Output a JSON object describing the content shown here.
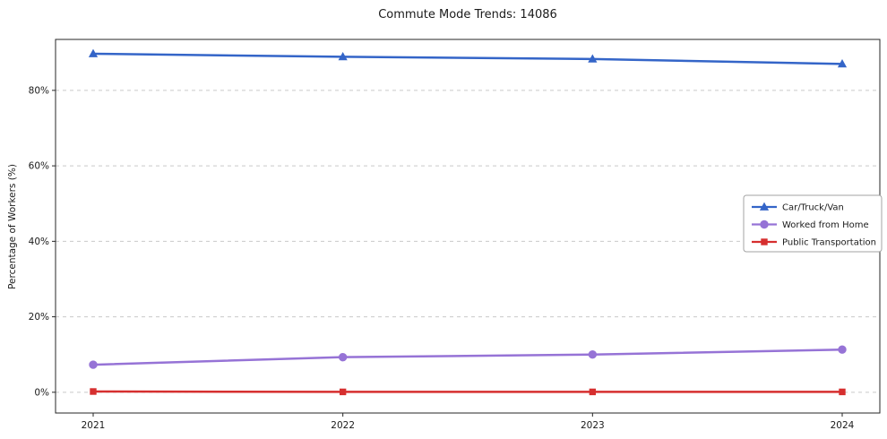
{
  "chart_data": {
    "type": "line",
    "title": "Commute Mode Trends: 14086",
    "ylabel": "Percentage of Workers (%)",
    "categories": [
      "2021",
      "2022",
      "2023",
      "2024"
    ],
    "series": [
      {
        "name": "Car/Truck/Van",
        "color": "#3465c8",
        "marker": "triangle",
        "values": [
          89.7,
          88.9,
          88.3,
          87.0
        ]
      },
      {
        "name": "Worked from Home",
        "color": "#9673d6",
        "marker": "circle",
        "values": [
          7.3,
          9.3,
          10.0,
          11.3
        ]
      },
      {
        "name": "Public Transportation",
        "color": "#d62f2f",
        "marker": "square",
        "values": [
          0.2,
          0.1,
          0.1,
          0.1
        ]
      }
    ],
    "yticks": [
      0,
      20,
      40,
      60,
      80
    ],
    "ytick_labels": [
      "0%",
      "20%",
      "40%",
      "60%",
      "80%"
    ],
    "ylim": [
      -5.5,
      93.5
    ],
    "grid": "horizontal-dashed",
    "legend_position": "center-right"
  }
}
